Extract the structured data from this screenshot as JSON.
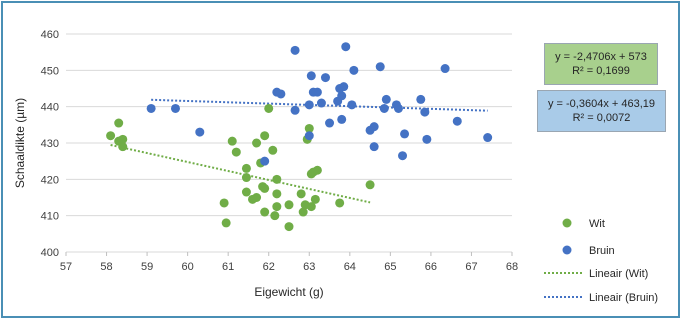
{
  "chart_data": {
    "type": "scatter",
    "xlabel": "Eigewicht (g)",
    "ylabel": "Schaaldikte (µm)",
    "xlim": [
      57,
      68
    ],
    "ylim": [
      400,
      460
    ],
    "xticks": [
      "57",
      "58",
      "59",
      "60",
      "61",
      "62",
      "63",
      "64",
      "65",
      "66",
      "67",
      "68"
    ],
    "yticks": [
      "400",
      "410",
      "420",
      "430",
      "440",
      "450",
      "460"
    ],
    "grid": "horizontal",
    "legend_position": "right",
    "series": [
      {
        "name": "Wit",
        "color": "#70ad47",
        "points": [
          [
            58.1,
            432
          ],
          [
            58.3,
            435.5
          ],
          [
            58.3,
            430.5
          ],
          [
            58.4,
            429
          ],
          [
            58.4,
            431
          ],
          [
            60.9,
            413.5
          ],
          [
            60.95,
            408
          ],
          [
            61.1,
            430.5
          ],
          [
            61.2,
            427.5
          ],
          [
            61.45,
            423
          ],
          [
            61.45,
            420.5
          ],
          [
            61.45,
            416.5
          ],
          [
            61.6,
            414.5
          ],
          [
            61.7,
            415
          ],
          [
            61.7,
            430
          ],
          [
            61.8,
            424.5
          ],
          [
            61.85,
            418
          ],
          [
            61.9,
            432
          ],
          [
            61.9,
            417.5
          ],
          [
            61.9,
            411
          ],
          [
            62.0,
            439.5
          ],
          [
            62.1,
            428
          ],
          [
            62.15,
            410
          ],
          [
            62.2,
            420
          ],
          [
            62.2,
            412.5
          ],
          [
            62.2,
            416
          ],
          [
            62.5,
            407
          ],
          [
            62.5,
            413
          ],
          [
            62.8,
            416
          ],
          [
            62.85,
            411
          ],
          [
            62.9,
            413
          ],
          [
            62.95,
            431
          ],
          [
            63.0,
            434
          ],
          [
            63.05,
            421.5
          ],
          [
            63.05,
            412.5
          ],
          [
            63.1,
            422
          ],
          [
            63.15,
            414.5
          ],
          [
            63.2,
            422.5
          ],
          [
            63.75,
            413.5
          ],
          [
            64.5,
            418.5
          ]
        ]
      },
      {
        "name": "Bruin",
        "color": "#4472c4",
        "points": [
          [
            59.1,
            439.5
          ],
          [
            59.7,
            439.5
          ],
          [
            60.3,
            433
          ],
          [
            61.9,
            425
          ],
          [
            62.2,
            444
          ],
          [
            62.3,
            443.5
          ],
          [
            62.65,
            439
          ],
          [
            62.65,
            455.5
          ],
          [
            63.0,
            432
          ],
          [
            63.0,
            440.5
          ],
          [
            63.05,
            448.5
          ],
          [
            63.1,
            444
          ],
          [
            63.2,
            444
          ],
          [
            63.3,
            441
          ],
          [
            63.4,
            448
          ],
          [
            63.5,
            435.5
          ],
          [
            63.7,
            441.5
          ],
          [
            63.75,
            445
          ],
          [
            63.8,
            443
          ],
          [
            63.8,
            436.5
          ],
          [
            63.85,
            445.5
          ],
          [
            63.9,
            456.5
          ],
          [
            64.05,
            440.5
          ],
          [
            64.1,
            450
          ],
          [
            64.5,
            433.5
          ],
          [
            64.6,
            434.5
          ],
          [
            64.6,
            429
          ],
          [
            64.75,
            451
          ],
          [
            64.85,
            439.5
          ],
          [
            64.9,
            442
          ],
          [
            65.15,
            440.5
          ],
          [
            65.2,
            439.5
          ],
          [
            65.3,
            426.5
          ],
          [
            65.35,
            432.5
          ],
          [
            65.75,
            442
          ],
          [
            65.85,
            438.5
          ],
          [
            65.9,
            431
          ],
          [
            66.35,
            450.5
          ],
          [
            66.65,
            436
          ],
          [
            67.4,
            431.5
          ]
        ]
      }
    ],
    "trendlines": [
      {
        "name": "Lineair (Wit)",
        "series": "Wit",
        "slope": -2.4706,
        "intercept": 573,
        "x_range": [
          58.1,
          64.5
        ],
        "color": "#70ad47"
      },
      {
        "name": "Lineair (Bruin)",
        "series": "Bruin",
        "slope": -0.3604,
        "intercept": 463.19,
        "x_range": [
          59.1,
          67.4
        ],
        "color": "#4472c4"
      }
    ],
    "annotations": {
      "wit_equation": "y = -2,4706x + 573",
      "wit_r2": "R² = 0,1699",
      "bruin_equation": "y = -0,3604x + 463,19",
      "bruin_r2": "R² = 0,0072"
    },
    "legend": [
      "Wit",
      "Bruin",
      "Lineair (Wit)",
      "Lineair (Bruin)"
    ]
  }
}
